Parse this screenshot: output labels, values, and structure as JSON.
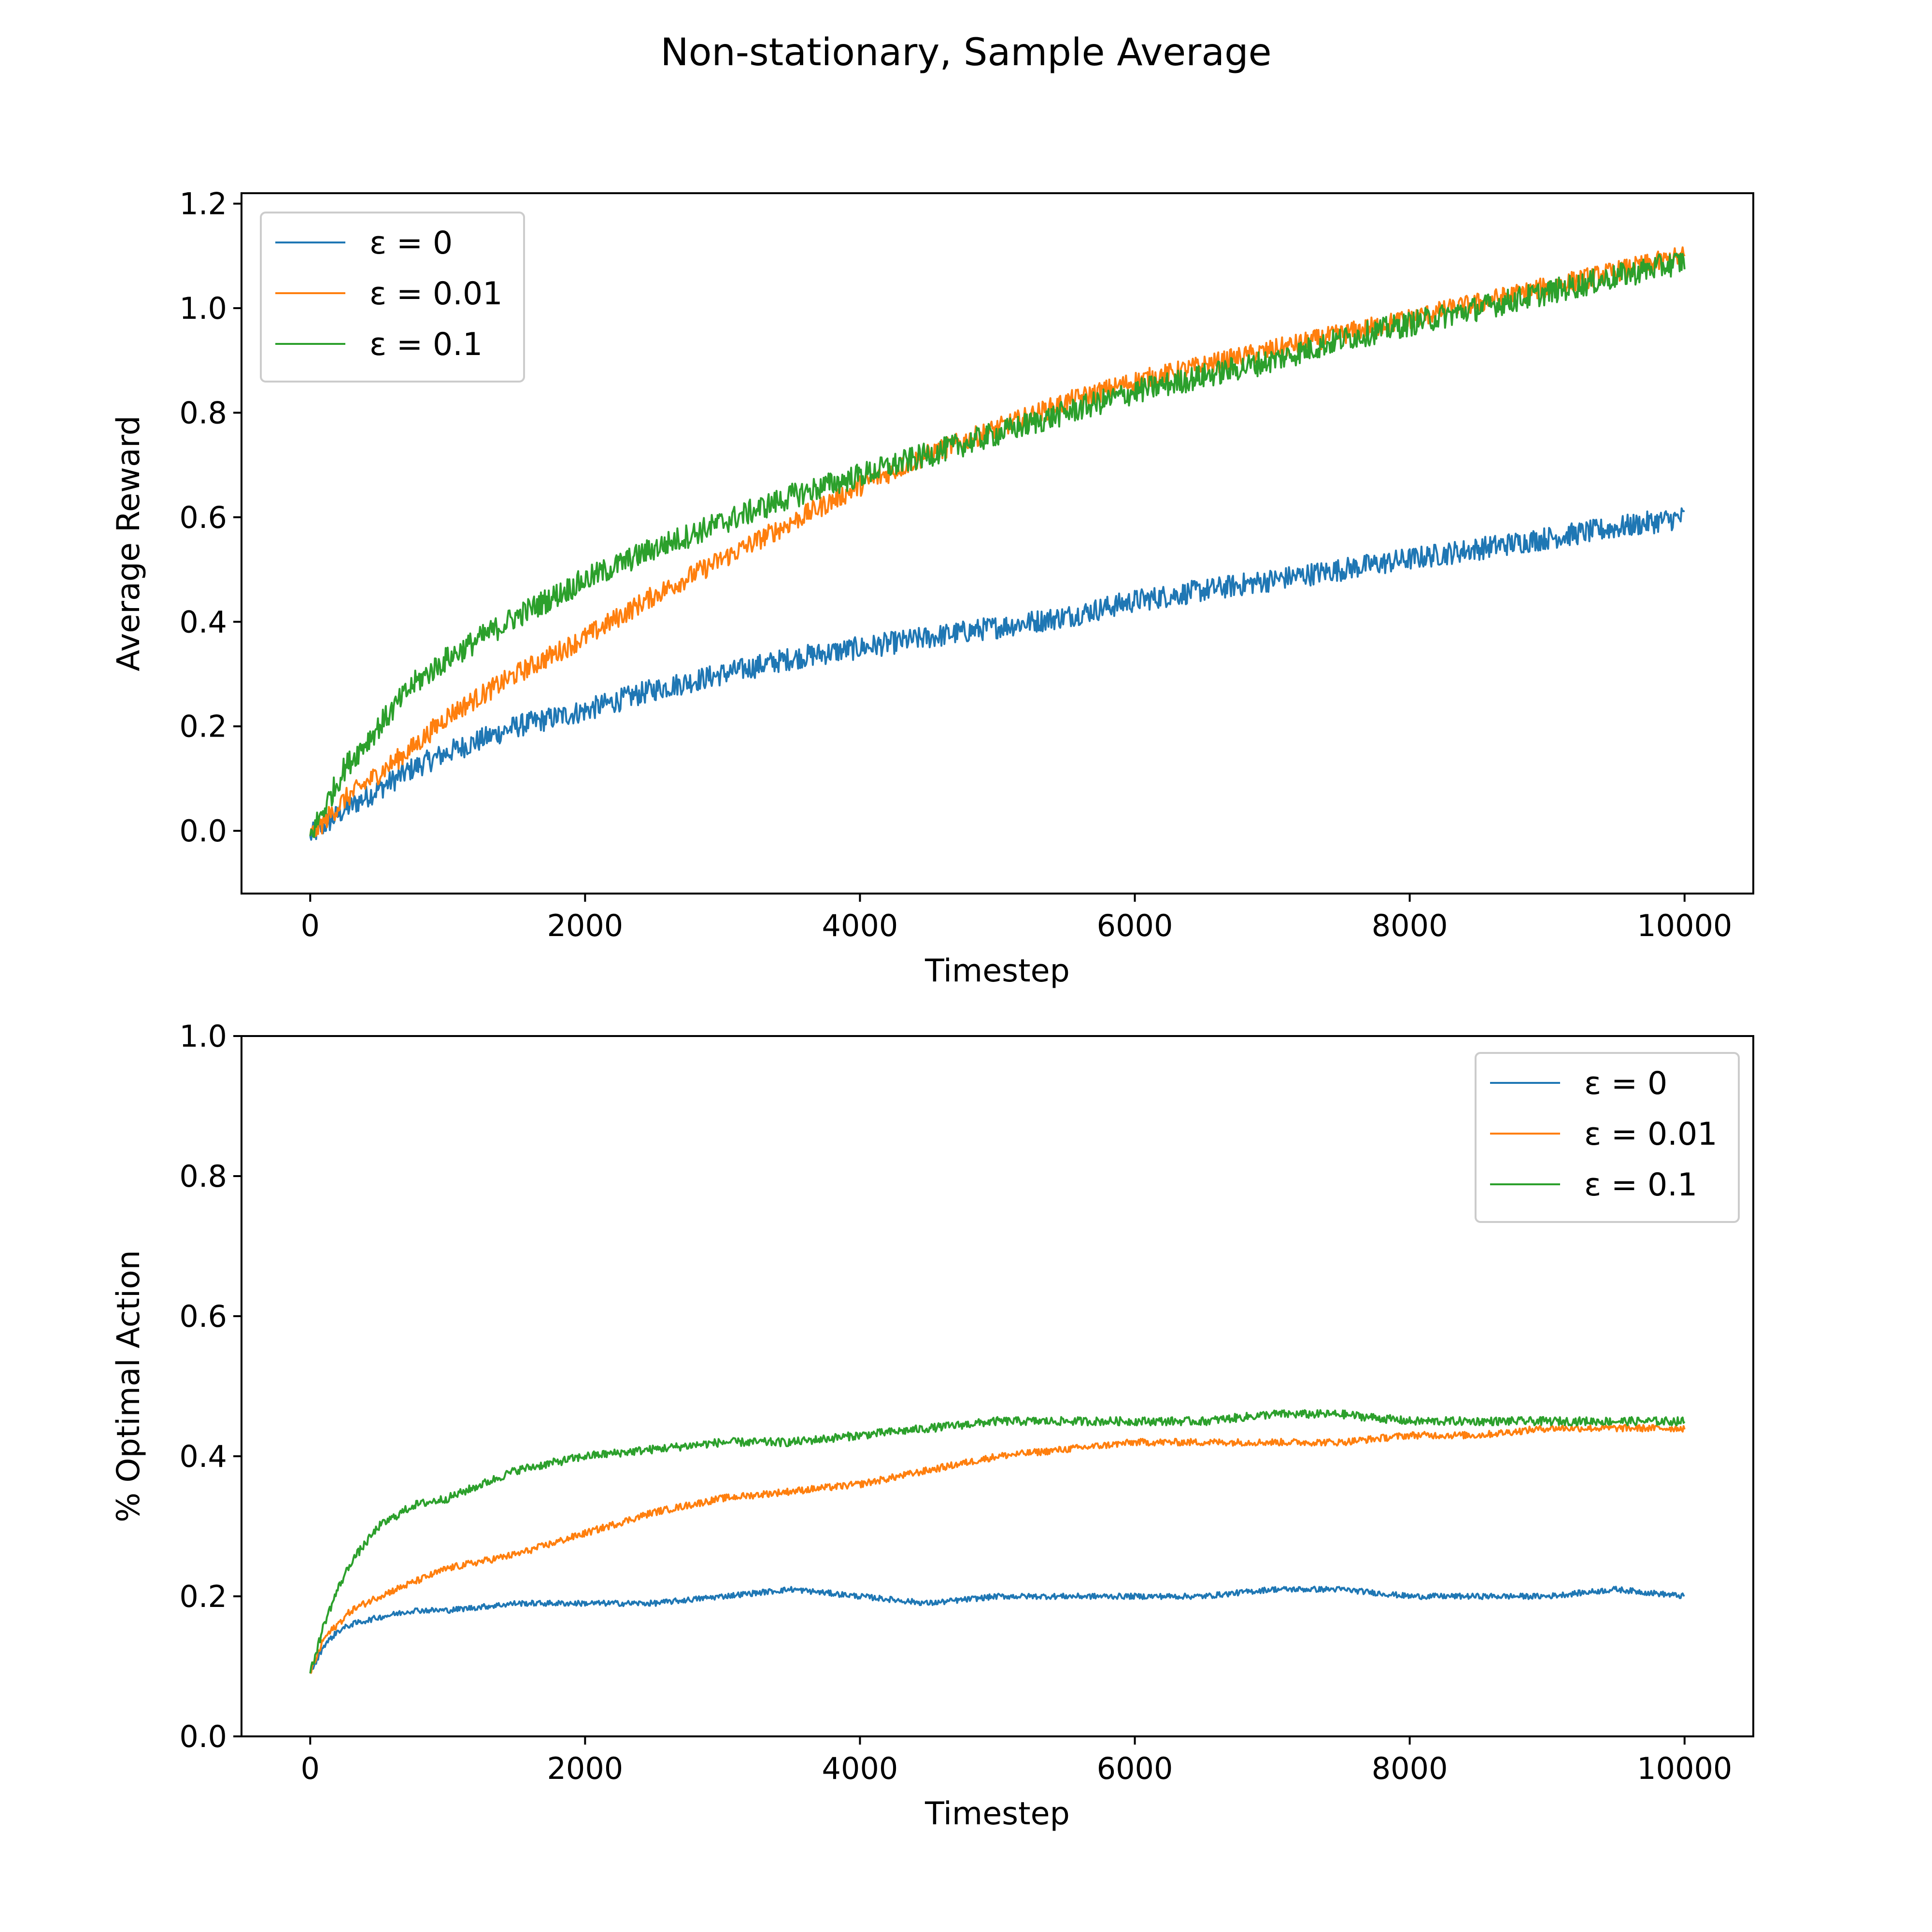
{
  "figure": {
    "suptitle": "Non-stationary, Sample Average"
  },
  "chart_data": [
    {
      "type": "line",
      "xlabel": "Timestep",
      "ylabel": "Average Reward",
      "xlim": [
        -500,
        10500
      ],
      "ylim": [
        -0.12,
        1.22
      ],
      "xticks": [
        "0",
        "2000",
        "4000",
        "6000",
        "8000",
        "10000"
      ],
      "xtick_values": [
        0,
        2000,
        4000,
        6000,
        8000,
        10000
      ],
      "yticks": [
        "0.0",
        "0.2",
        "0.4",
        "0.6",
        "0.8",
        "1.0",
        "1.2"
      ],
      "ytick_values": [
        0.0,
        0.2,
        0.4,
        0.6,
        0.8,
        1.0,
        1.2
      ],
      "legend": "upper-left",
      "grid": false,
      "x": [
        0,
        250,
        500,
        750,
        1000,
        1500,
        2000,
        2500,
        3000,
        3500,
        4000,
        4500,
        5000,
        5500,
        6000,
        6500,
        7000,
        7500,
        8000,
        8500,
        9000,
        9500,
        10000
      ],
      "series": [
        {
          "name": "ε = 0",
          "color": "#1f77b4",
          "noise": 0.022,
          "values": [
            -0.01,
            0.04,
            0.08,
            0.12,
            0.15,
            0.2,
            0.23,
            0.27,
            0.3,
            0.33,
            0.35,
            0.37,
            0.39,
            0.41,
            0.44,
            0.46,
            0.48,
            0.5,
            0.52,
            0.54,
            0.56,
            0.58,
            0.6
          ]
        },
        {
          "name": "ε = 0.01",
          "color": "#ff7f0e",
          "noise": 0.02,
          "values": [
            -0.01,
            0.06,
            0.11,
            0.16,
            0.22,
            0.3,
            0.37,
            0.45,
            0.52,
            0.59,
            0.66,
            0.72,
            0.77,
            0.82,
            0.86,
            0.89,
            0.92,
            0.95,
            0.98,
            1.01,
            1.04,
            1.07,
            1.1
          ]
        },
        {
          "name": "ε = 0.1",
          "color": "#2ca02c",
          "noise": 0.024,
          "values": [
            -0.01,
            0.12,
            0.2,
            0.28,
            0.33,
            0.41,
            0.48,
            0.54,
            0.59,
            0.64,
            0.68,
            0.72,
            0.76,
            0.8,
            0.84,
            0.87,
            0.9,
            0.94,
            0.97,
            1.0,
            1.03,
            1.06,
            1.09
          ]
        }
      ]
    },
    {
      "type": "line",
      "xlabel": "Timestep",
      "ylabel": "% Optimal Action",
      "xlim": [
        -500,
        10500
      ],
      "ylim": [
        0.0,
        1.0
      ],
      "xticks": [
        "0",
        "2000",
        "4000",
        "6000",
        "8000",
        "10000"
      ],
      "xtick_values": [
        0,
        2000,
        4000,
        6000,
        8000,
        10000
      ],
      "yticks": [
        "0.0",
        "0.2",
        "0.4",
        "0.6",
        "0.8",
        "1.0"
      ],
      "ytick_values": [
        0.0,
        0.2,
        0.4,
        0.6,
        0.8,
        1.0
      ],
      "legend": "upper-right",
      "grid": false,
      "x": [
        0,
        100,
        200,
        300,
        500,
        750,
        1000,
        1500,
        2000,
        2500,
        3000,
        3500,
        4000,
        4500,
        5000,
        5500,
        6000,
        6500,
        7000,
        7500,
        8000,
        8500,
        9000,
        9500,
        10000
      ],
      "series": [
        {
          "name": "ε = 0",
          "color": "#1f77b4",
          "noise": 0.004,
          "values": [
            0.09,
            0.13,
            0.15,
            0.16,
            0.17,
            0.18,
            0.18,
            0.19,
            0.19,
            0.19,
            0.2,
            0.21,
            0.2,
            0.19,
            0.2,
            0.2,
            0.2,
            0.2,
            0.21,
            0.21,
            0.2,
            0.2,
            0.2,
            0.21,
            0.2
          ]
        },
        {
          "name": "ε = 0.01",
          "color": "#ff7f0e",
          "noise": 0.005,
          "values": [
            0.09,
            0.14,
            0.16,
            0.18,
            0.2,
            0.22,
            0.24,
            0.26,
            0.29,
            0.32,
            0.34,
            0.35,
            0.36,
            0.38,
            0.4,
            0.41,
            0.42,
            0.42,
            0.42,
            0.42,
            0.43,
            0.43,
            0.44,
            0.44,
            0.44
          ]
        },
        {
          "name": "ε = 0.1",
          "color": "#2ca02c",
          "noise": 0.006,
          "values": [
            0.09,
            0.16,
            0.21,
            0.25,
            0.3,
            0.33,
            0.34,
            0.38,
            0.4,
            0.41,
            0.42,
            0.42,
            0.43,
            0.44,
            0.45,
            0.45,
            0.45,
            0.45,
            0.46,
            0.46,
            0.45,
            0.45,
            0.45,
            0.45,
            0.45
          ]
        }
      ]
    }
  ]
}
